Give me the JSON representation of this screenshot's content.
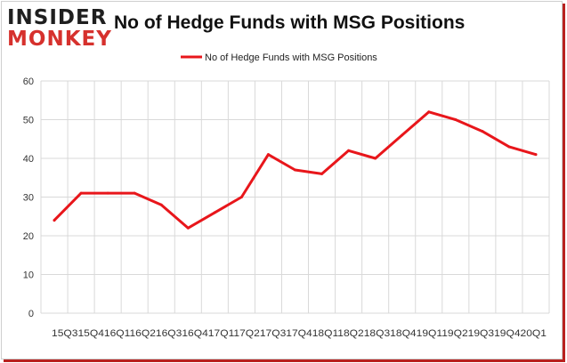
{
  "brand": {
    "logo_top": "INSIDER",
    "logo_bottom": "MONKEY"
  },
  "colors": {
    "series": "#e8161b",
    "grid": "#d9d9d9",
    "frame_shadow": "#b9211f"
  },
  "chart_data": {
    "type": "line",
    "title": "No of Hedge Funds with MSG Positions",
    "xlabel": "",
    "ylabel": "",
    "ylim": [
      0,
      60
    ],
    "yticks": [
      0,
      10,
      20,
      30,
      40,
      50,
      60
    ],
    "grid": true,
    "legend_position": "top-center",
    "x_tick_text": "15Q315Q416Q116Q216Q316Q417Q117Q217Q317Q418Q118Q218Q318Q419Q119Q219Q319Q420Q1",
    "categories": [
      "15Q3",
      "15Q4",
      "16Q1",
      "16Q2",
      "16Q3",
      "16Q4",
      "17Q1",
      "17Q2",
      "17Q3",
      "17Q4",
      "18Q1",
      "18Q2",
      "18Q3",
      "18Q4",
      "19Q1",
      "19Q2",
      "19Q3",
      "19Q4",
      "20Q1"
    ],
    "series": [
      {
        "name": "No of Hedge Funds with MSG Positions",
        "values": [
          24,
          31,
          31,
          31,
          28,
          22,
          26,
          30,
          41,
          37,
          36,
          42,
          40,
          46,
          52,
          50,
          47,
          43,
          41
        ]
      }
    ]
  }
}
